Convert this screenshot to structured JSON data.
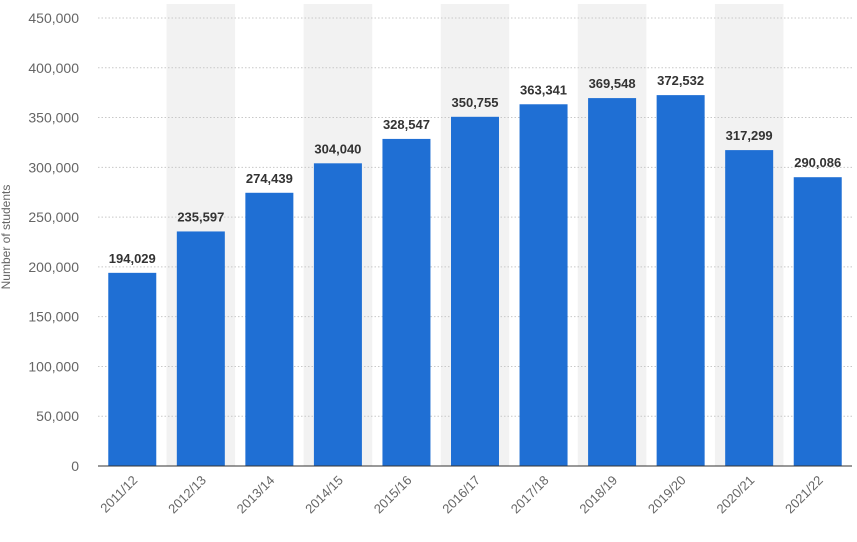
{
  "chart_data": {
    "type": "bar",
    "categories": [
      "2011/12",
      "2012/13",
      "2013/14",
      "2014/15",
      "2015/16",
      "2016/17",
      "2017/18",
      "2018/19",
      "2019/20",
      "2020/21",
      "2021/22"
    ],
    "values": [
      194029,
      235597,
      274439,
      304040,
      328547,
      350755,
      363341,
      369548,
      372532,
      317299,
      290086
    ],
    "value_labels": [
      "194,029",
      "235,597",
      "274,439",
      "304,040",
      "328,547",
      "350,755",
      "363,341",
      "369,548",
      "372,532",
      "317,299",
      "290,086"
    ],
    "ylabel": "Number of students",
    "ylim": [
      0,
      450000
    ],
    "yticks": [
      0,
      50000,
      100000,
      150000,
      200000,
      250000,
      300000,
      350000,
      400000,
      450000
    ],
    "ytick_labels": [
      "0",
      "50,000",
      "100,000",
      "150,000",
      "200,000",
      "250,000",
      "300,000",
      "350,000",
      "400,000",
      "450,000"
    ],
    "grid": true,
    "bar_color": "#1f6fd4",
    "band_color": "#f2f2f2"
  }
}
